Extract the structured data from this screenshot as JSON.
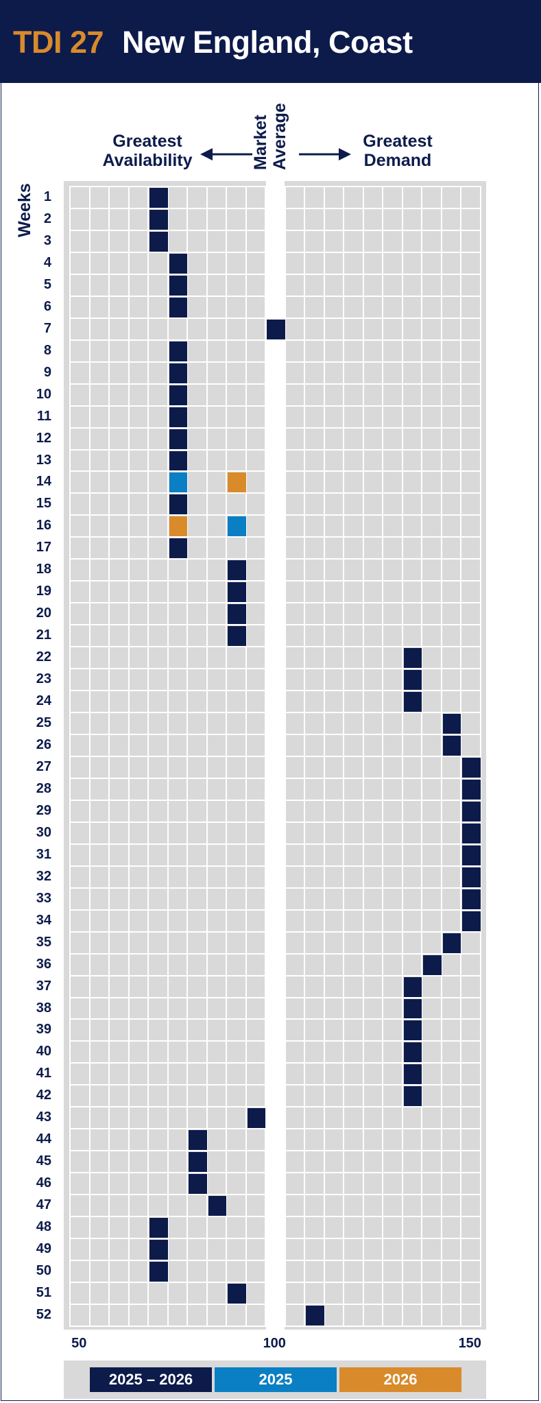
{
  "header": {
    "code": "TDI 27",
    "name": "New England, Coast"
  },
  "captions": {
    "left_line1": "Greatest",
    "left_line2": "Availability",
    "center_line1": "Market",
    "center_line2": "Average",
    "right_line1": "Greatest",
    "right_line2": "Demand"
  },
  "colors": {
    "navy": "#0d1b4b",
    "blue": "#0a7fc4",
    "orange": "#d98a2b",
    "grid": "#d9d9d9"
  },
  "chart_data": {
    "type": "heatmap",
    "title": "New England, Coast",
    "ylabel": "Weeks",
    "xlim": [
      50,
      150
    ],
    "x_ticks": [
      50,
      100,
      150
    ],
    "legend": [
      {
        "label": "2025 – 2026",
        "color": "#0d1b4b"
      },
      {
        "label": "2025",
        "color": "#0a7fc4"
      },
      {
        "label": "2026",
        "color": "#d98a2b"
      }
    ],
    "weeks": [
      1,
      2,
      3,
      4,
      5,
      6,
      7,
      8,
      9,
      10,
      11,
      12,
      13,
      14,
      15,
      16,
      17,
      18,
      19,
      20,
      21,
      22,
      23,
      24,
      25,
      26,
      27,
      28,
      29,
      30,
      31,
      32,
      33,
      34,
      35,
      36,
      37,
      38,
      39,
      40,
      41,
      42,
      43,
      44,
      45,
      46,
      47,
      48,
      49,
      50,
      51,
      52
    ],
    "series": [
      {
        "name": "2025 – 2026",
        "points": [
          [
            1,
            70
          ],
          [
            2,
            70
          ],
          [
            3,
            70
          ],
          [
            4,
            75
          ],
          [
            5,
            75
          ],
          [
            6,
            75
          ],
          [
            7,
            100
          ],
          [
            8,
            75
          ],
          [
            9,
            75
          ],
          [
            10,
            75
          ],
          [
            11,
            75
          ],
          [
            12,
            75
          ],
          [
            13,
            75
          ],
          [
            15,
            75
          ],
          [
            17,
            75
          ],
          [
            18,
            90
          ],
          [
            19,
            90
          ],
          [
            20,
            90
          ],
          [
            21,
            90
          ],
          [
            22,
            135
          ],
          [
            23,
            135
          ],
          [
            24,
            135
          ],
          [
            25,
            145
          ],
          [
            26,
            145
          ],
          [
            27,
            150
          ],
          [
            28,
            150
          ],
          [
            29,
            150
          ],
          [
            30,
            150
          ],
          [
            31,
            150
          ],
          [
            32,
            150
          ],
          [
            33,
            150
          ],
          [
            34,
            150
          ],
          [
            35,
            145
          ],
          [
            36,
            140
          ],
          [
            37,
            135
          ],
          [
            38,
            135
          ],
          [
            39,
            135
          ],
          [
            40,
            135
          ],
          [
            41,
            135
          ],
          [
            42,
            135
          ],
          [
            43,
            95
          ],
          [
            44,
            80
          ],
          [
            45,
            80
          ],
          [
            46,
            80
          ],
          [
            47,
            85
          ],
          [
            48,
            70
          ],
          [
            49,
            70
          ],
          [
            50,
            70
          ],
          [
            51,
            90
          ],
          [
            52,
            110
          ]
        ]
      },
      {
        "name": "2025",
        "points": [
          [
            14,
            75
          ],
          [
            16,
            90
          ]
        ]
      },
      {
        "name": "2026",
        "points": [
          [
            14,
            90
          ],
          [
            16,
            75
          ]
        ]
      }
    ]
  }
}
